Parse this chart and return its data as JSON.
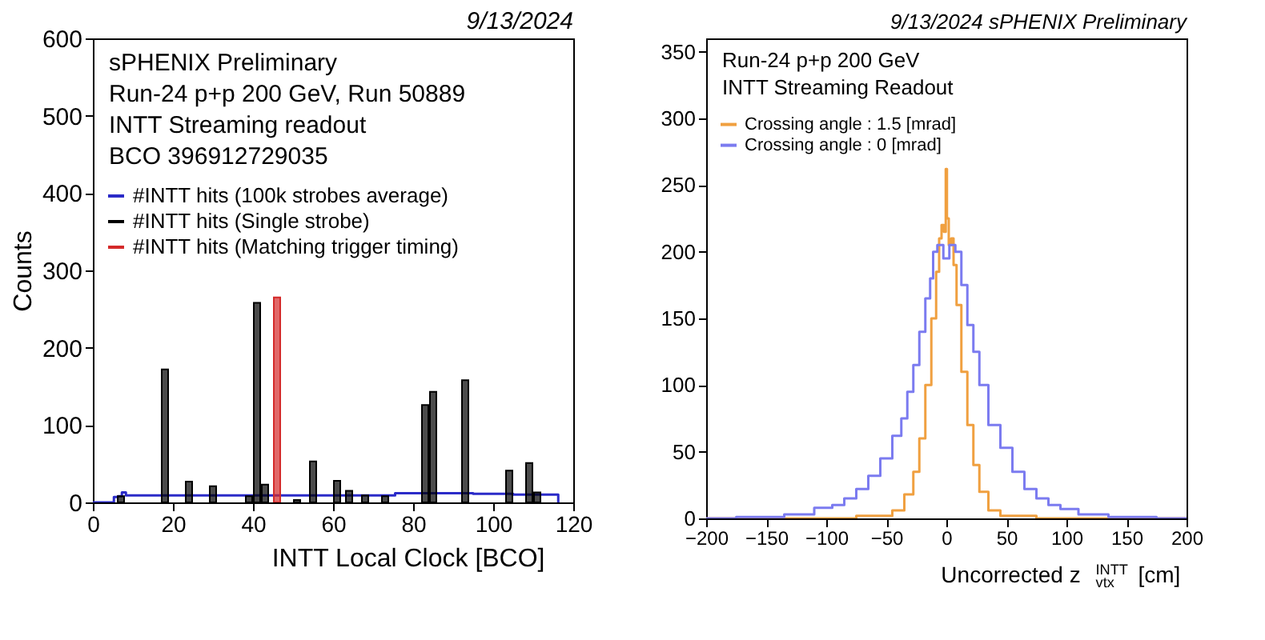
{
  "chart_data": [
    {
      "type": "bar",
      "xlabel": "INTT Local Clock [BCO]",
      "ylabel": "Counts",
      "xlim": [
        0,
        120
      ],
      "xticks": [
        0,
        20,
        40,
        60,
        80,
        100,
        120
      ],
      "ylim": [
        0,
        600
      ],
      "yticks": [
        0,
        100,
        200,
        300,
        400,
        500,
        600
      ],
      "grid": false,
      "legend": "top left",
      "annotations": [
        "9/13/2024",
        "sPHENIX Preliminary",
        "Run-24 p+p 200 GeV, Run 50889",
        "INTT Streaming readout",
        "BCO 396912729035"
      ],
      "series": [
        {
          "name": "#INTT hits (100k strobes average)",
          "color": "#2b2bc8",
          "type": "step",
          "x": [
            0,
            5,
            5.5,
            7,
            7.5,
            9,
            20,
            40,
            60,
            75,
            76,
            90,
            100,
            110,
            116,
            116.5
          ],
          "values": [
            0,
            0,
            7,
            8,
            13,
            9,
            9,
            9,
            9,
            9,
            12,
            12,
            11,
            10,
            10,
            0
          ]
        },
        {
          "name": "#INTT hits (Single strobe)",
          "color": "#000000",
          "type": "bar",
          "x": [
            7,
            18,
            24,
            30,
            39,
            41,
            43,
            51,
            55,
            61,
            64,
            68,
            73,
            83,
            85,
            93,
            104,
            109,
            111
          ],
          "values": [
            8,
            172,
            27,
            21,
            8,
            258,
            23,
            3,
            53,
            28,
            15,
            9,
            8,
            126,
            143,
            158,
            41,
            51,
            13
          ]
        },
        {
          "name": "#INTT hits (Matching trigger timing)",
          "color": "#d42a2a",
          "type": "bar",
          "x": [
            46
          ],
          "values": [
            265
          ]
        }
      ]
    },
    {
      "type": "step",
      "xlabel": "Uncorrected z$^{INTT}$$_{vtx}$ [cm]",
      "xlim": [
        -200,
        200
      ],
      "xticks": [
        -200,
        -150,
        -100,
        -50,
        0,
        50,
        100,
        150,
        200
      ],
      "ylim": [
        0,
        360
      ],
      "yticks": [
        0,
        50,
        100,
        150,
        200,
        250,
        300,
        350
      ],
      "grid": false,
      "legend": "top left",
      "annotations": [
        "9/13/2024 sPHENIX Preliminary",
        "Run-24 p+p 200 GeV",
        "INTT Streaming Readout"
      ],
      "series": [
        {
          "name": "Crossing angle : 1.5 [mrad]",
          "color": "#f0a040",
          "x": [
            -200,
            -100,
            -50,
            -40,
            -30,
            -25,
            -20,
            -15,
            -10,
            -7,
            -5,
            -3,
            -1,
            0,
            1,
            3,
            5,
            7,
            10,
            15,
            20,
            25,
            30,
            40,
            50,
            100,
            200
          ],
          "values": [
            0,
            0,
            2,
            6,
            18,
            35,
            60,
            100,
            150,
            185,
            210,
            220,
            215,
            262,
            225,
            205,
            210,
            190,
            160,
            110,
            70,
            40,
            20,
            6,
            2,
            0,
            0
          ]
        },
        {
          "name": "Crossing angle : 0 [mrad]",
          "color": "#7b7bf0",
          "x": [
            -200,
            -150,
            -120,
            -100,
            -90,
            -80,
            -70,
            -60,
            -50,
            -40,
            -35,
            -30,
            -25,
            -20,
            -15,
            -12,
            -10,
            -5,
            0,
            5,
            10,
            15,
            20,
            25,
            30,
            40,
            50,
            60,
            70,
            80,
            90,
            100,
            120,
            150,
            200
          ],
          "values": [
            0,
            1,
            3,
            8,
            10,
            15,
            22,
            32,
            45,
            62,
            75,
            95,
            115,
            140,
            165,
            180,
            200,
            205,
            195,
            205,
            200,
            175,
            145,
            125,
            100,
            70,
            53,
            35,
            22,
            15,
            10,
            7,
            3,
            1,
            0
          ]
        }
      ]
    }
  ]
}
